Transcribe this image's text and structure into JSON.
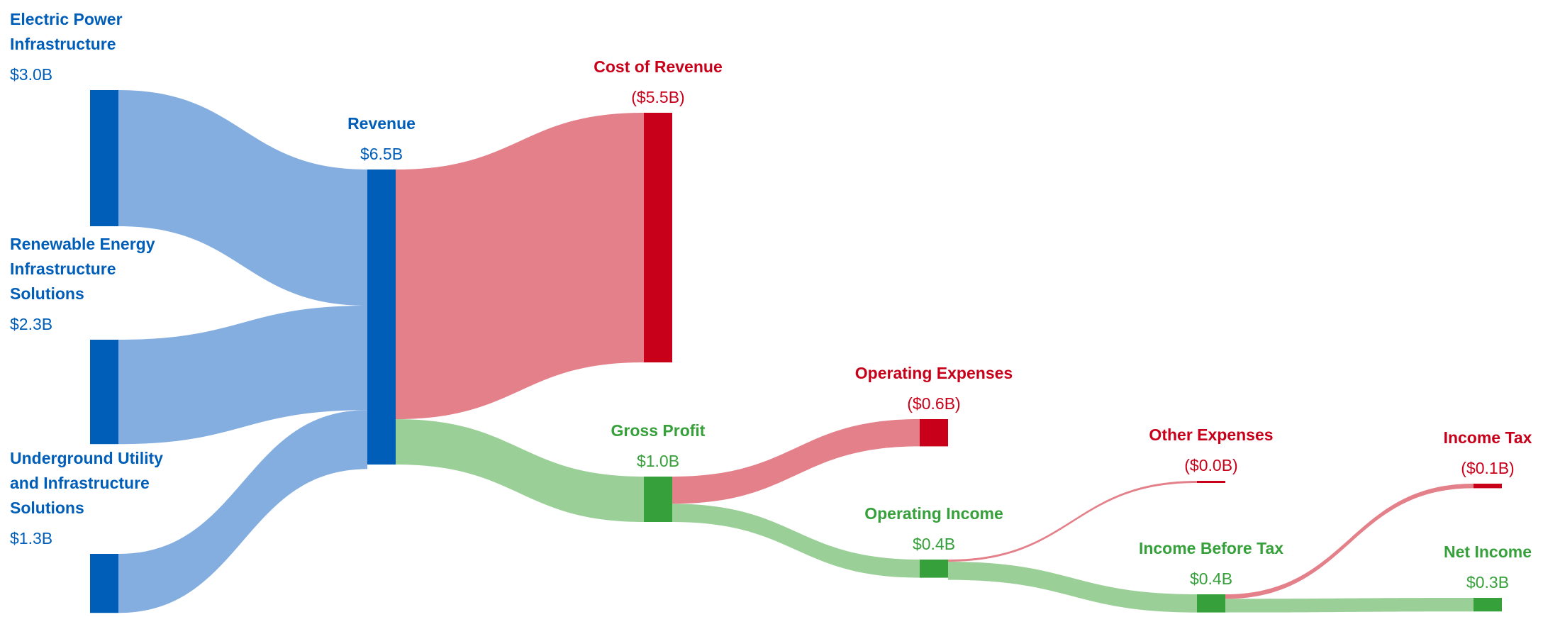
{
  "chart_data": {
    "type": "sankey",
    "nodes": [
      {
        "name": "Electric Power Infrastructure",
        "value": 3.0,
        "value_label": "$3.0B",
        "color": "#005eb8"
      },
      {
        "name": "Renewable Energy Infrastructure Solutions",
        "value": 2.3,
        "value_label": "$2.3B",
        "color": "#005eb8"
      },
      {
        "name": "Underground Utility and Infrastructure Solutions",
        "value": 1.3,
        "value_label": "$1.3B",
        "color": "#005eb8"
      },
      {
        "name": "Revenue",
        "value": 6.5,
        "value_label": "$6.5B",
        "color": "#005eb8"
      },
      {
        "name": "Cost of Revenue",
        "value": 5.5,
        "value_label": "($5.5B)",
        "color": "#c8001a"
      },
      {
        "name": "Gross Profit",
        "value": 1.0,
        "value_label": "$1.0B",
        "color": "#36a03a"
      },
      {
        "name": "Operating Expenses",
        "value": 0.6,
        "value_label": "($0.6B)",
        "color": "#c8001a"
      },
      {
        "name": "Operating Income",
        "value": 0.4,
        "value_label": "$0.4B",
        "color": "#36a03a"
      },
      {
        "name": "Other Expenses",
        "value": 0.0,
        "value_label": "($0.0B)",
        "color": "#c8001a"
      },
      {
        "name": "Income Before Tax",
        "value": 0.4,
        "value_label": "$0.4B",
        "color": "#36a03a"
      },
      {
        "name": "Income Tax",
        "value": 0.1,
        "value_label": "($0.1B)",
        "color": "#c8001a"
      },
      {
        "name": "Net Income",
        "value": 0.3,
        "value_label": "$0.3B",
        "color": "#36a03a"
      }
    ],
    "links": [
      {
        "source": 0,
        "target": 3,
        "color": "#84aedf"
      },
      {
        "source": 1,
        "target": 3,
        "color": "#84aedf"
      },
      {
        "source": 2,
        "target": 3,
        "color": "#84aedf"
      },
      {
        "source": 3,
        "target": 4,
        "color": "#e4808a"
      },
      {
        "source": 3,
        "target": 5,
        "color": "#9bcf98"
      },
      {
        "source": 5,
        "target": 6,
        "color": "#e4808a"
      },
      {
        "source": 5,
        "target": 7,
        "color": "#9bcf98"
      },
      {
        "source": 7,
        "target": 8,
        "color": "#e4808a"
      },
      {
        "source": 7,
        "target": 9,
        "color": "#9bcf98"
      },
      {
        "source": 9,
        "target": 10,
        "color": "#e4808a"
      },
      {
        "source": 9,
        "target": 11,
        "color": "#9bcf98"
      }
    ]
  }
}
